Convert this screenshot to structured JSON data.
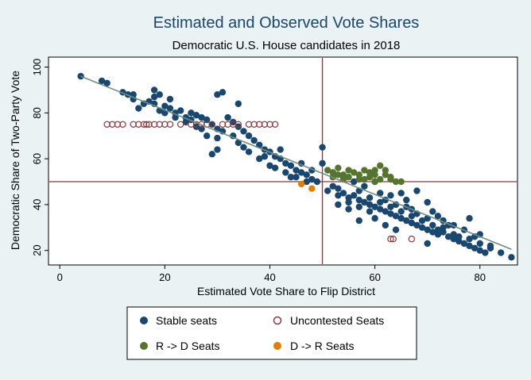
{
  "chart_data": {
    "type": "scatter",
    "title": "Estimated and Observed Vote Shares",
    "subtitle": "Democratic U.S. House candidates in 2018",
    "xlabel": "Estimated Vote Share to Flip District",
    "ylabel": "Democratic Share of Two-Party Vote",
    "xlim": [
      -2,
      87
    ],
    "ylim": [
      14,
      104
    ],
    "xticks": [
      0,
      20,
      40,
      60,
      80
    ],
    "yticks": [
      20,
      40,
      60,
      80,
      100
    ],
    "reference_lines": {
      "x": 50,
      "y": 50
    },
    "fit_line": {
      "x": [
        4,
        86
      ],
      "y": [
        96,
        20.5
      ]
    },
    "legend_position": "bottom",
    "colors": {
      "stable": "#1a476f",
      "uncontested": "#90353b",
      "r_to_d": "#55752f",
      "d_to_r": "#e37e00",
      "reference_line": "#90353b",
      "fit_line": "#6e8e84"
    },
    "series": [
      {
        "key": "stable",
        "name": "Stable seats",
        "points": [
          [
            4,
            96
          ],
          [
            8,
            94
          ],
          [
            9,
            93
          ],
          [
            12,
            89
          ],
          [
            13,
            88
          ],
          [
            14,
            86
          ],
          [
            14,
            88
          ],
          [
            17,
            85
          ],
          [
            18,
            84
          ],
          [
            19,
            81
          ],
          [
            18,
            87
          ],
          [
            18,
            90
          ],
          [
            19,
            88
          ],
          [
            20,
            83
          ],
          [
            21,
            82
          ],
          [
            22,
            80
          ],
          [
            23,
            81
          ],
          [
            24,
            78
          ],
          [
            25,
            80
          ],
          [
            26,
            79
          ],
          [
            27,
            78
          ],
          [
            28,
            77
          ],
          [
            29,
            75
          ],
          [
            30,
            73
          ],
          [
            30,
            69
          ],
          [
            31,
            72
          ],
          [
            29,
            62
          ],
          [
            30,
            64
          ],
          [
            30,
            88
          ],
          [
            31,
            89
          ],
          [
            32,
            78
          ],
          [
            33,
            76
          ],
          [
            34,
            84
          ],
          [
            34,
            74
          ],
          [
            35,
            72
          ],
          [
            36,
            70
          ],
          [
            37,
            68
          ],
          [
            38,
            66
          ],
          [
            39,
            64
          ],
          [
            40,
            63
          ],
          [
            41,
            61
          ],
          [
            42,
            60
          ],
          [
            43,
            58
          ],
          [
            44,
            57
          ],
          [
            44,
            52
          ],
          [
            45,
            55
          ],
          [
            46,
            54
          ],
          [
            47,
            53
          ],
          [
            48,
            51
          ],
          [
            49,
            50
          ],
          [
            50,
            65
          ],
          [
            50,
            58
          ],
          [
            52,
            48
          ],
          [
            53,
            47
          ],
          [
            54,
            45
          ],
          [
            55,
            43
          ],
          [
            56,
            44
          ],
          [
            57,
            42
          ],
          [
            58,
            41
          ],
          [
            59,
            40
          ],
          [
            60,
            39
          ],
          [
            61,
            38
          ],
          [
            62,
            37
          ],
          [
            63,
            36
          ],
          [
            64,
            35
          ],
          [
            64,
            29
          ],
          [
            65,
            34
          ],
          [
            66,
            33
          ],
          [
            67,
            32
          ],
          [
            68,
            31
          ],
          [
            69,
            30
          ],
          [
            70,
            29
          ],
          [
            70,
            41
          ],
          [
            71,
            28
          ],
          [
            72,
            27
          ],
          [
            72,
            35
          ],
          [
            73,
            28
          ],
          [
            74,
            26
          ],
          [
            75,
            25
          ],
          [
            76,
            24
          ],
          [
            77,
            23
          ],
          [
            78,
            22
          ],
          [
            78,
            34
          ],
          [
            79,
            21
          ],
          [
            80,
            20
          ],
          [
            80,
            27
          ],
          [
            81,
            19
          ],
          [
            82,
            21
          ],
          [
            84,
            19
          ],
          [
            86,
            17
          ],
          [
            70,
            23
          ],
          [
            62,
            42
          ],
          [
            60,
            50
          ],
          [
            58,
            48
          ],
          [
            56,
            50
          ],
          [
            65,
            45
          ],
          [
            68,
            46
          ],
          [
            55,
            38
          ],
          [
            53,
            40
          ],
          [
            57,
            33
          ],
          [
            66,
            39
          ],
          [
            63,
            44
          ],
          [
            67,
            38
          ],
          [
            71,
            37
          ],
          [
            73,
            33
          ],
          [
            75,
            31
          ],
          [
            77,
            29
          ],
          [
            79,
            26
          ],
          [
            61,
            45
          ],
          [
            59,
            37
          ],
          [
            57,
            46
          ],
          [
            36,
            63
          ],
          [
            38,
            60
          ],
          [
            42,
            64
          ],
          [
            40,
            57
          ],
          [
            34,
            67
          ],
          [
            33,
            70
          ],
          [
            28,
            70
          ],
          [
            26,
            74
          ],
          [
            24,
            76
          ],
          [
            46,
            58
          ],
          [
            48,
            55
          ],
          [
            52,
            54
          ],
          [
            54,
            52
          ],
          [
            22,
            78
          ],
          [
            20,
            80
          ],
          [
            16,
            84
          ],
          [
            15,
            82
          ],
          [
            21,
            86
          ],
          [
            25,
            77
          ],
          [
            27,
            73
          ],
          [
            35,
            65
          ],
          [
            39,
            61
          ],
          [
            41,
            56
          ],
          [
            43,
            54
          ],
          [
            45,
            52
          ],
          [
            47,
            50
          ],
          [
            51,
            46
          ],
          [
            53,
            44
          ],
          [
            55,
            41
          ],
          [
            57,
            39
          ],
          [
            59,
            43
          ],
          [
            61,
            41
          ],
          [
            63,
            39
          ],
          [
            65,
            37
          ],
          [
            67,
            35
          ],
          [
            69,
            33
          ],
          [
            71,
            31
          ],
          [
            73,
            30
          ],
          [
            75,
            27
          ],
          [
            60,
            34
          ],
          [
            62,
            31
          ],
          [
            64,
            40
          ],
          [
            66,
            42
          ],
          [
            68,
            36
          ],
          [
            70,
            34
          ],
          [
            72,
            29
          ],
          [
            74,
            31
          ],
          [
            76,
            26
          ],
          [
            78,
            25
          ],
          [
            80,
            23
          ],
          [
            82,
            22
          ]
        ]
      },
      {
        "key": "uncontested",
        "name": "Uncontested Seats",
        "points": [
          [
            9,
            75
          ],
          [
            10,
            75
          ],
          [
            11,
            75
          ],
          [
            12,
            75
          ],
          [
            14,
            75
          ],
          [
            15,
            75
          ],
          [
            16,
            75
          ],
          [
            16.5,
            75
          ],
          [
            17,
            75
          ],
          [
            18,
            75
          ],
          [
            19,
            75
          ],
          [
            20,
            75
          ],
          [
            21,
            75
          ],
          [
            23,
            75
          ],
          [
            25,
            75
          ],
          [
            26,
            75
          ],
          [
            27,
            75
          ],
          [
            28,
            75
          ],
          [
            29,
            75
          ],
          [
            31,
            75
          ],
          [
            32,
            75
          ],
          [
            33,
            75
          ],
          [
            34,
            75
          ],
          [
            36,
            75
          ],
          [
            37,
            75
          ],
          [
            38,
            75
          ],
          [
            39,
            75
          ],
          [
            40,
            75
          ],
          [
            41,
            75
          ],
          [
            63,
            25
          ],
          [
            63.5,
            25
          ],
          [
            67,
            25
          ]
        ]
      },
      {
        "key": "r_to_d",
        "name": "R -> D Seats",
        "points": [
          [
            51,
            55
          ],
          [
            52,
            54
          ],
          [
            52,
            52
          ],
          [
            53,
            56
          ],
          [
            54,
            53
          ],
          [
            55,
            52
          ],
          [
            55,
            55
          ],
          [
            56,
            54
          ],
          [
            57,
            53
          ],
          [
            58,
            55
          ],
          [
            58,
            51
          ],
          [
            59,
            54
          ],
          [
            59,
            52
          ],
          [
            60,
            53
          ],
          [
            60,
            55
          ],
          [
            61,
            51
          ],
          [
            61,
            57
          ],
          [
            62,
            53
          ],
          [
            62,
            55
          ],
          [
            63,
            52
          ],
          [
            63,
            51
          ],
          [
            64,
            50
          ],
          [
            65,
            50
          ],
          [
            60,
            50
          ],
          [
            57,
            51
          ],
          [
            54,
            51
          ],
          [
            53,
            53
          ]
        ]
      },
      {
        "key": "d_to_r",
        "name": "D -> R Seats",
        "points": [
          [
            46,
            49
          ],
          [
            48,
            47
          ]
        ]
      }
    ]
  }
}
